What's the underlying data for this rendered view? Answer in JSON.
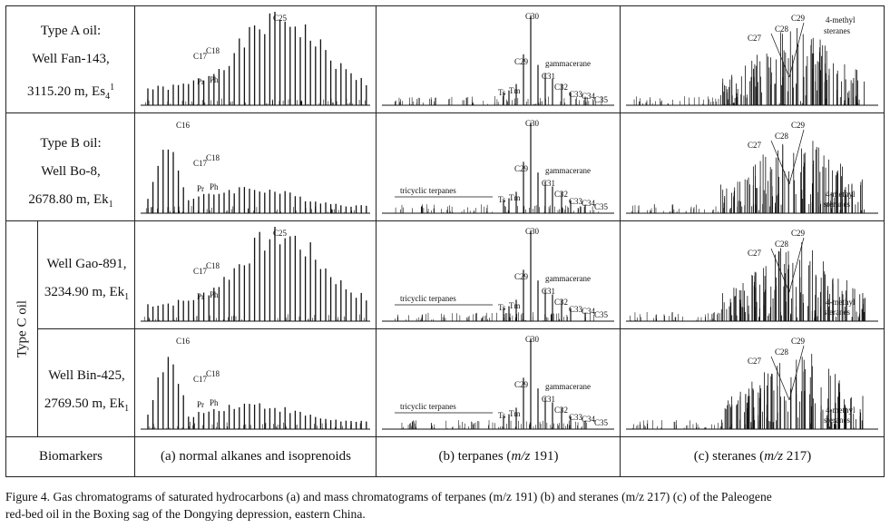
{
  "rows": [
    {
      "label_lines": [
        "Type A oil:",
        "Well Fan-143,",
        "3115.20 m, Es"
      ],
      "label_sup": "4",
      "label_sup2": "1"
    },
    {
      "label_lines": [
        "Type B oil:",
        "Well Bo-8,",
        "2678.80 m, Ek"
      ],
      "label_sub": "1"
    },
    {
      "label_lines": [
        "Well Gao-891,",
        "3234.90 m, Ek"
      ],
      "label_sub": "1"
    },
    {
      "label_lines": [
        "Well Bin-425,",
        "2769.50 m, Ek"
      ],
      "label_sub": "1"
    }
  ],
  "type_c_label": "Type C oil",
  "footer": {
    "biomarkers": "Biomarkers",
    "col_a": "(a) normal alkanes and isoprenoids",
    "col_b_pre": "(b) terpanes (",
    "col_b_mz": "m/z",
    "col_b_post": " 191)",
    "col_c_pre": "(c) steranes (",
    "col_c_mz": "m/z",
    "col_c_post": " 217)"
  },
  "annotations": {
    "alkanes": {
      "c25": "C25",
      "c17": "C17",
      "c18": "C18",
      "c16": "C16",
      "pr": "Pr",
      "ph": "Ph"
    },
    "terpanes": {
      "c30": "C30",
      "c29": "C29",
      "c31": "C31",
      "c32": "C32",
      "c33": "C33",
      "c34": "C34",
      "c35": "C35",
      "ts": "Ts",
      "tm": "Tm",
      "gammacerane": "gammacerane",
      "tricyclic": "tricyclic terpanes"
    },
    "steranes": {
      "c27": "C27",
      "c28": "C28",
      "c29": "C29",
      "methyl_1": "4-methyl",
      "methyl_2": "steranes"
    }
  },
  "caption_line1": "Figure 4. Gas chromatograms of saturated hydrocarbons (a) and mass chromatograms of terpanes (m/z 191) (b) and steranes (m/z 217) (c) of the Paleogene",
  "caption_line2": "red-bed oil in the Boxing sag of the Dongying depression, eastern China."
}
